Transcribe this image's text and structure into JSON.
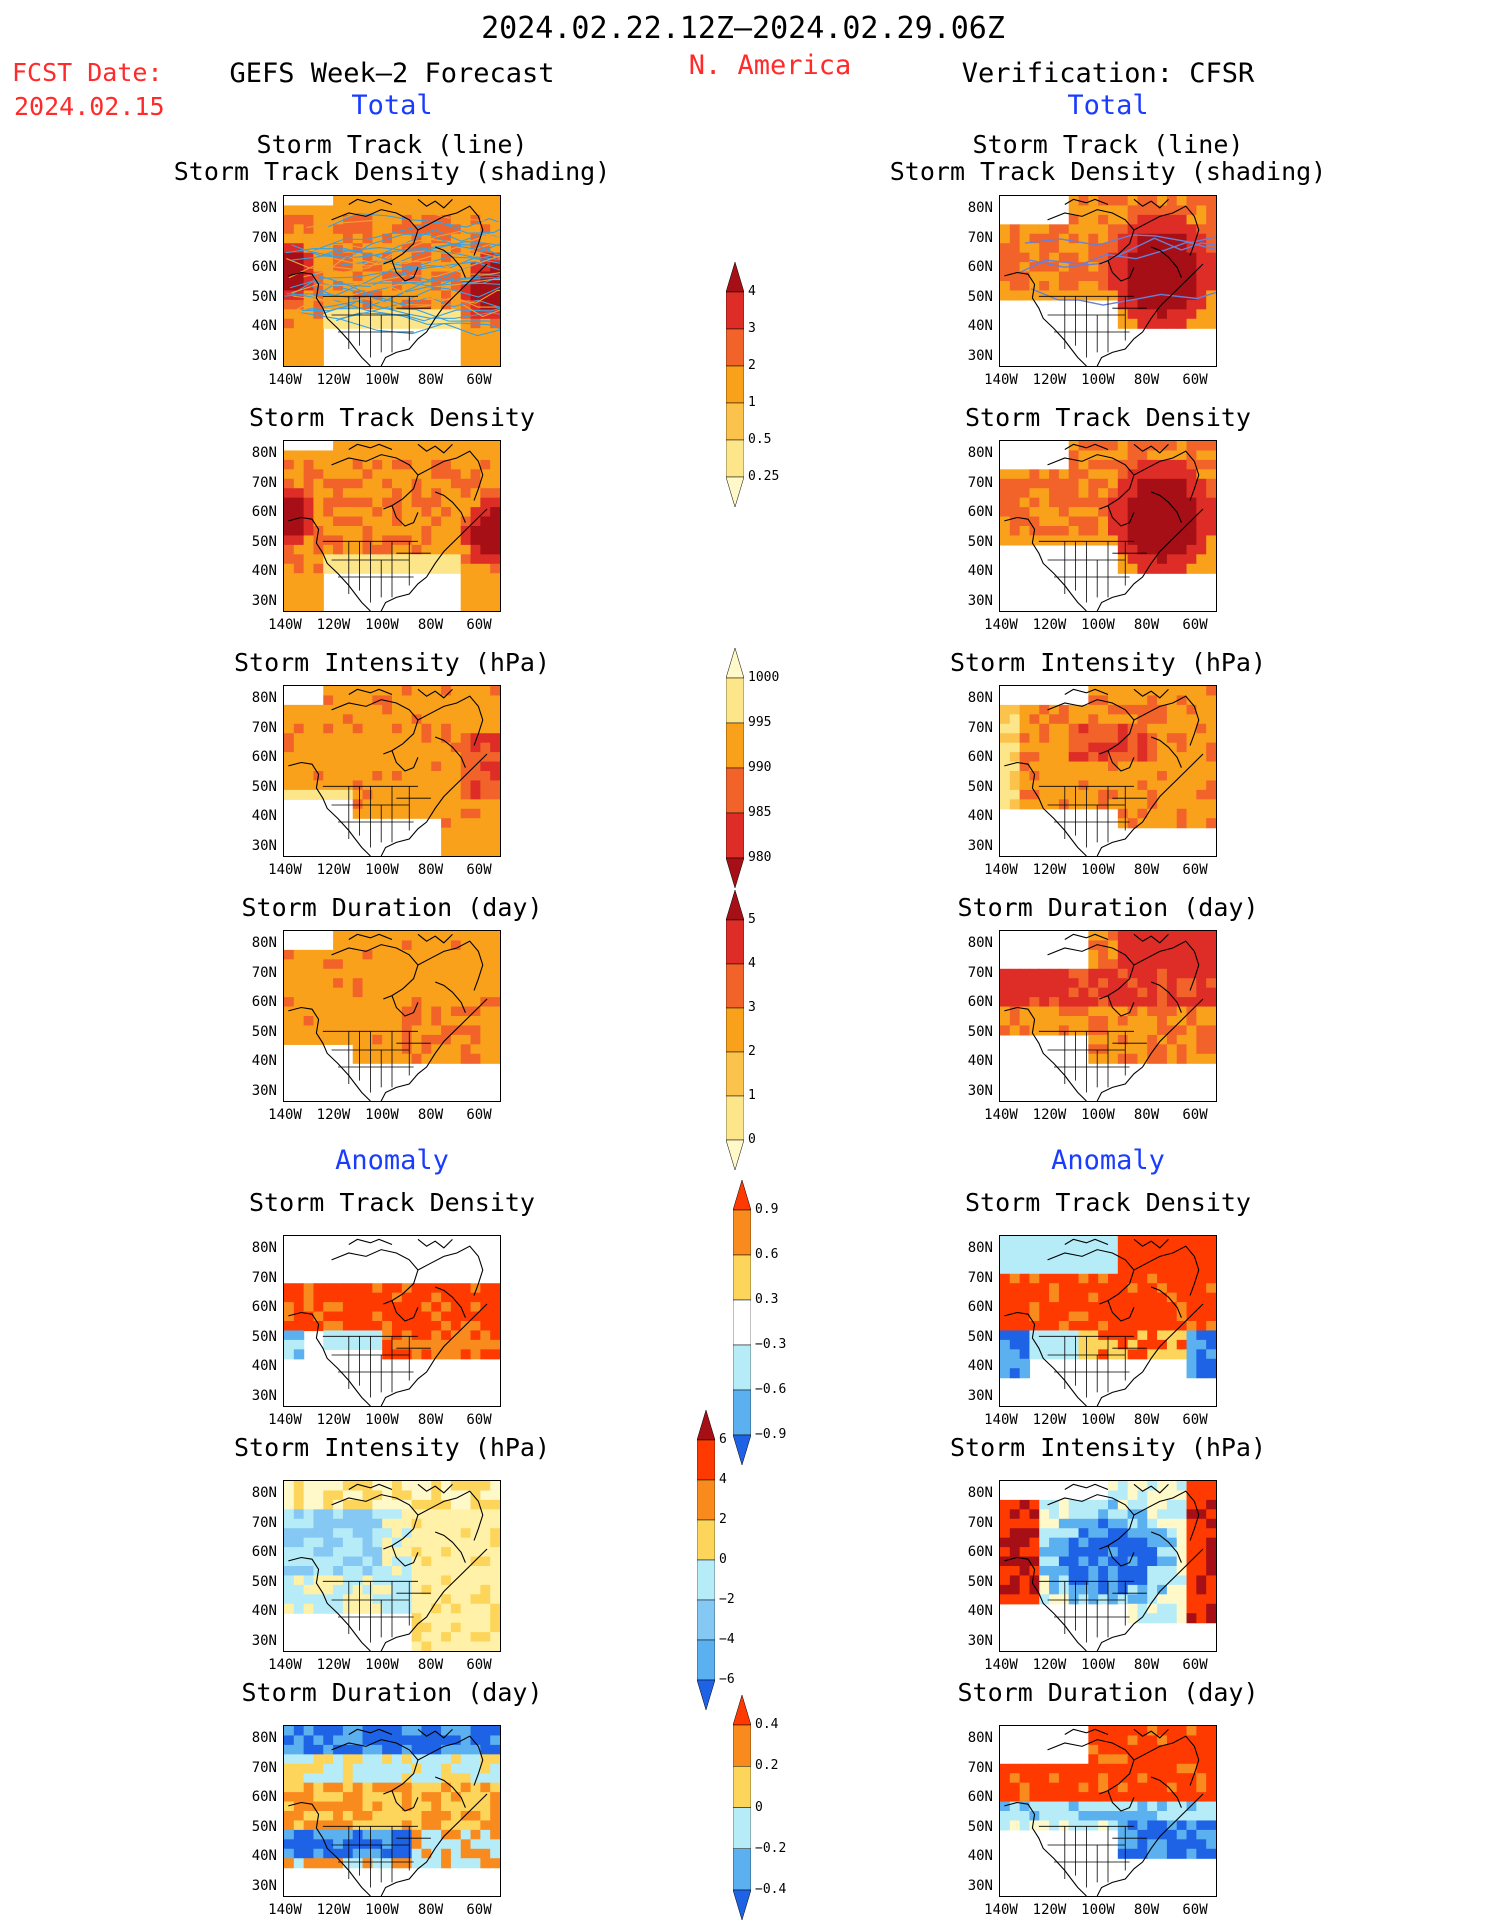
{
  "header": {
    "period": "2024.02.22.12Z–2024.02.29.06Z",
    "region": "N. America",
    "fcst_label": "FCST Date:",
    "fcst_date": "2024.02.15",
    "left_title": "GEFS Week–2 Forecast",
    "right_title": "Verification: CFSR",
    "total_label": "Total",
    "anomaly_label": "Anomaly"
  },
  "axes": {
    "lat_labels": [
      "80N",
      "70N",
      "60N",
      "50N",
      "40N",
      "30N"
    ],
    "lon_labels": [
      "140W",
      "120W",
      "100W",
      "80W",
      "60W"
    ]
  },
  "rows": [
    {
      "section": "total",
      "title_lines": [
        "Storm Track (line)",
        "Storm Track Density (shading)"
      ]
    },
    {
      "section": "total",
      "title_lines": [
        "Storm Track Density"
      ]
    },
    {
      "section": "total",
      "title_lines": [
        "Storm Intensity (hPa)"
      ]
    },
    {
      "section": "total",
      "title_lines": [
        "Storm Duration (day)"
      ]
    },
    {
      "section": "anomaly",
      "title_lines": [
        "Storm Track Density"
      ]
    },
    {
      "section": "anomaly",
      "title_lines": [
        "Storm Intensity (hPa)"
      ]
    },
    {
      "section": "anomaly",
      "title_lines": [
        "Storm Duration (day)"
      ]
    }
  ],
  "colorbars": [
    {
      "name": "density-total",
      "labels": [
        "4",
        "3",
        "2",
        "1",
        "0.5",
        "0.25"
      ],
      "colors": [
        "#a50f15",
        "#de2d26",
        "#f2632a",
        "#f9a11b",
        "#fcc34c",
        "#fde68a",
        "#fff8c8"
      ]
    },
    {
      "name": "intensity-total",
      "labels": [
        "1000",
        "995",
        "990",
        "985",
        "980"
      ],
      "colors": [
        "#fff8c8",
        "#fde68a",
        "#f9a11b",
        "#f2632a",
        "#de2d26",
        "#a50f15"
      ]
    },
    {
      "name": "duration-total",
      "labels": [
        "5",
        "4",
        "3",
        "2",
        "1",
        "0"
      ],
      "colors": [
        "#a50f15",
        "#de2d26",
        "#f2632a",
        "#f9a11b",
        "#fcc34c",
        "#fde68a",
        "#fff8c8"
      ]
    },
    {
      "name": "density-anomaly",
      "labels": [
        "0.9",
        "0.6",
        "0.3",
        "−0.3",
        "−0.6",
        "−0.9"
      ],
      "colors": [
        "#ff3a00",
        "#f98b1e",
        "#fdd55a",
        "#ffffff",
        "#b6ecf8",
        "#5bb0f0",
        "#1e63e6"
      ]
    },
    {
      "name": "intensity-anomaly",
      "labels": [
        "6",
        "4",
        "2",
        "0",
        "−2",
        "−4",
        "−6"
      ],
      "colors": [
        "#a50f15",
        "#ff3a00",
        "#f98b1e",
        "#fdd55a",
        "#b6ecf8",
        "#86c8f4",
        "#5bb0f0",
        "#1e63e6"
      ]
    },
    {
      "name": "duration-anomaly",
      "labels": [
        "0.4",
        "0.2",
        "0",
        "−0.2",
        "−0.4"
      ],
      "colors": [
        "#ff3a00",
        "#f98b1e",
        "#fdd55a",
        "#b6ecf8",
        "#5bb0f0",
        "#1e63e6"
      ]
    }
  ],
  "colors": {
    "dark_red": "#a50f15",
    "red": "#de2d26",
    "orange_red": "#f2632a",
    "orange": "#f9a11b",
    "light_orange": "#fcc34c",
    "yellow": "#fde68a",
    "pale": "#fff8c8",
    "light_blue": "#b6ecf8",
    "mid_blue": "#5bb0f0",
    "blue": "#1e63e6",
    "bright_red": "#ff3a00",
    "anom_orange": "#f98b1e",
    "anom_yellow": "#fdd55a",
    "track_blue": "#3aa0e0",
    "track_orange": "#f0a030"
  }
}
